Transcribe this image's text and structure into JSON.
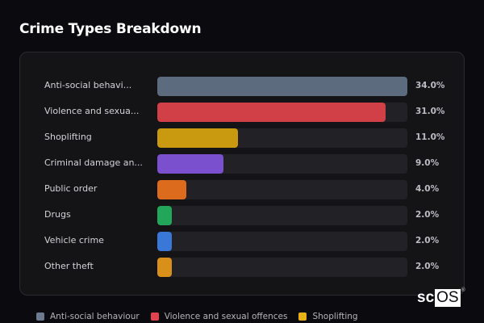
{
  "header": {
    "title": "Crime Types Breakdown"
  },
  "chart_data": {
    "type": "bar",
    "orientation": "horizontal",
    "title": "Crime Types Breakdown",
    "xlabel": "",
    "ylabel": "",
    "xlim": [
      0,
      34
    ],
    "grid": false,
    "legend_position": "bottom",
    "categories": [
      "Anti-social behaviour",
      "Violence and sexual offences",
      "Shoplifting",
      "Criminal damage and arson",
      "Public order",
      "Drugs",
      "Vehicle crime",
      "Other theft"
    ],
    "display_labels": [
      "Anti-social behavi...",
      "Violence and sexua...",
      "Shoplifting",
      "Criminal damage an...",
      "Public order",
      "Drugs",
      "Vehicle crime",
      "Other theft"
    ],
    "values": [
      34.0,
      31.0,
      11.0,
      9.0,
      4.0,
      2.0,
      2.0,
      2.0
    ],
    "value_labels": [
      "34.0%",
      "31.0%",
      "11.0%",
      "9.0%",
      "4.0%",
      "2.0%",
      "2.0%",
      "2.0%"
    ],
    "colors": [
      "#5d6b7e",
      "#d04046",
      "#c9990f",
      "#7a50cf",
      "#dc6b1e",
      "#22a65a",
      "#3a78d8",
      "#d9901b"
    ]
  },
  "legend": [
    {
      "label": "Anti-social behaviour",
      "color": "#6b7a90"
    },
    {
      "label": "Violence and sexual offences",
      "color": "#e0434b"
    },
    {
      "label": "Shoplifting",
      "color": "#e6b216"
    }
  ],
  "watermark": {
    "sc": "sc",
    "os": "OS",
    "reg": "®"
  }
}
